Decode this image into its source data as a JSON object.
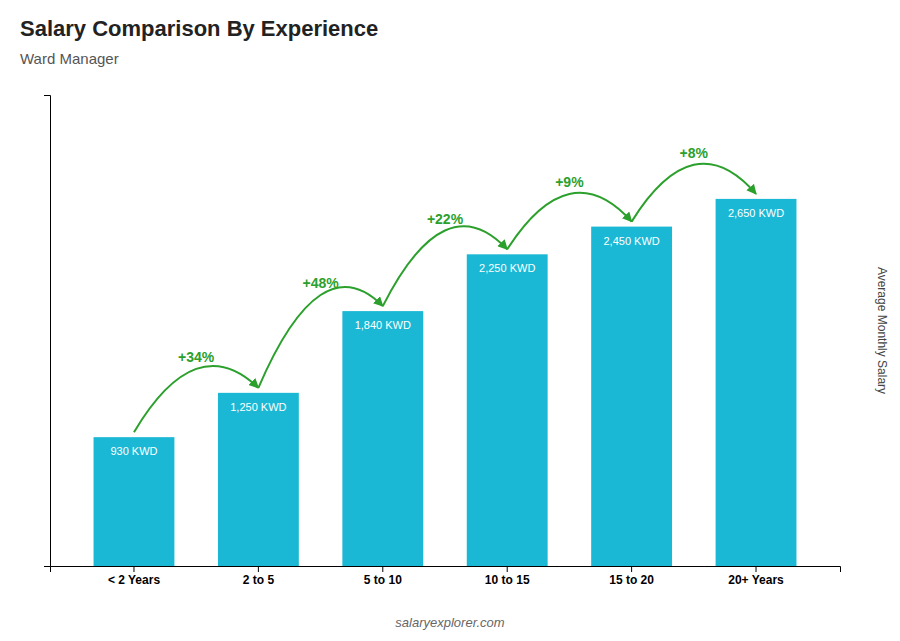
{
  "chart_data": {
    "type": "bar",
    "title": "Salary Comparison By Experience",
    "subtitle": "Ward Manager",
    "ylabel": "Average Monthly Salary",
    "categories": [
      "< 2 Years",
      "2 to 5",
      "5 to 10",
      "10 to 15",
      "15 to 20",
      "20+ Years"
    ],
    "values": [
      930,
      1250,
      1840,
      2250,
      2450,
      2650
    ],
    "value_labels": [
      "930 KWD",
      "1,250 KWD",
      "1,840 KWD",
      "2,250 KWD",
      "2,450 KWD",
      "2,650 KWD"
    ],
    "data_labels": true,
    "color": "#1ab8d4",
    "ylim": [
      0,
      3400
    ],
    "yticks": [],
    "tick_labels": "x",
    "grid": false,
    "annotations": [
      "+34%",
      "+48%",
      "+22%",
      "+9%",
      "+8%"
    ],
    "footer": "salaryexplorer.com"
  }
}
